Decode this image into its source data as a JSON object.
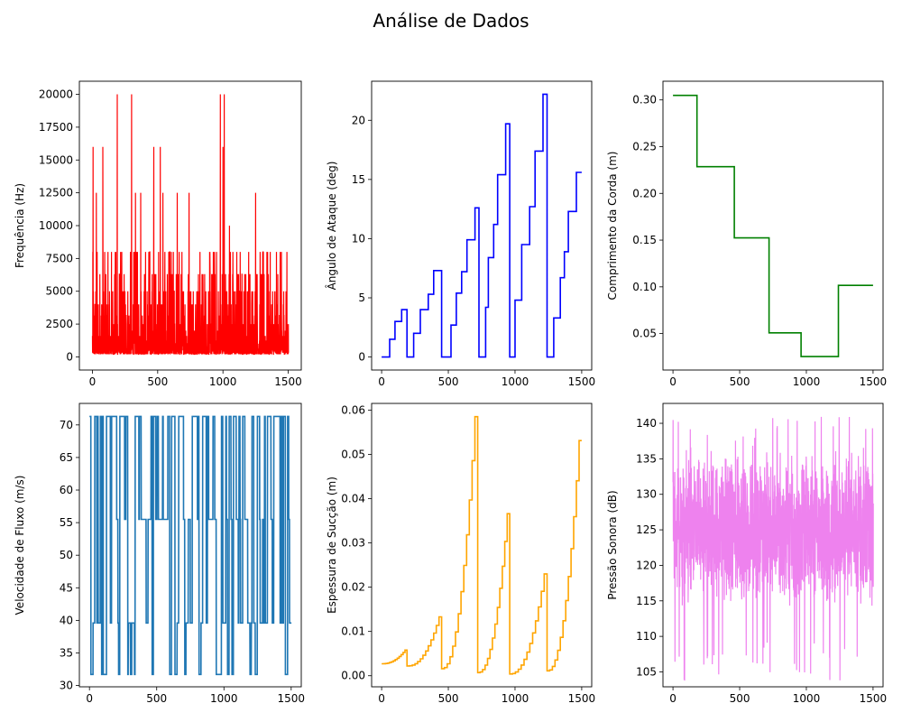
{
  "figure_title": "Análise de Dados",
  "chart_data": [
    {
      "type": "line",
      "panel": "top-left",
      "ylabel": "Frequência (Hz)",
      "color": "#ff0000",
      "xlim": [
        -100,
        1600
      ],
      "ylim": [
        -1000,
        21000
      ],
      "xticks": [
        0,
        500,
        1000,
        1500
      ],
      "yticks": [
        0,
        2500,
        5000,
        7500,
        10000,
        12500,
        15000,
        17500,
        20000
      ],
      "levels": [
        200,
        250,
        315,
        400,
        500,
        630,
        800,
        1000,
        1250,
        1600,
        2000,
        2500,
        3150,
        4000,
        5000,
        6300,
        8000,
        10000,
        12500,
        16000,
        20000
      ],
      "highlights": [
        [
          5,
          16000
        ],
        [
          30,
          12500
        ],
        [
          80,
          16000
        ],
        [
          190,
          20000
        ],
        [
          300,
          20000
        ],
        [
          330,
          12500
        ],
        [
          370,
          12500
        ],
        [
          470,
          16000
        ],
        [
          520,
          16000
        ],
        [
          540,
          12500
        ],
        [
          650,
          12500
        ],
        [
          740,
          12500
        ],
        [
          980,
          20000
        ],
        [
          1000,
          16000
        ],
        [
          1010,
          20000
        ],
        [
          1050,
          10000
        ],
        [
          1250,
          12500
        ]
      ]
    },
    {
      "type": "line",
      "panel": "top-center",
      "ylabel": "Ângulo de Ataque (deg)",
      "color": "#0000ff",
      "xlim": [
        -75,
        1575
      ],
      "ylim": [
        -1.1,
        23.3
      ],
      "xticks": [
        0,
        500,
        1000,
        1500
      ],
      "yticks": [
        0,
        5,
        10,
        15,
        20
      ],
      "steps": [
        [
          0,
          0
        ],
        [
          60,
          1.5
        ],
        [
          100,
          3.0
        ],
        [
          150,
          4.0
        ],
        [
          190,
          0
        ],
        [
          240,
          2.0
        ],
        [
          290,
          4.0
        ],
        [
          350,
          5.3
        ],
        [
          390,
          7.3
        ],
        [
          450,
          0
        ],
        [
          520,
          2.7
        ],
        [
          560,
          5.4
        ],
        [
          600,
          7.2
        ],
        [
          640,
          9.9
        ],
        [
          700,
          12.6
        ],
        [
          730,
          0
        ],
        [
          780,
          4.2
        ],
        [
          800,
          8.4
        ],
        [
          840,
          11.2
        ],
        [
          870,
          15.4
        ],
        [
          930,
          19.7
        ],
        [
          960,
          0
        ],
        [
          1000,
          4.8
        ],
        [
          1050,
          9.5
        ],
        [
          1110,
          12.7
        ],
        [
          1150,
          17.4
        ],
        [
          1210,
          22.2
        ],
        [
          1240,
          0
        ],
        [
          1290,
          3.3
        ],
        [
          1340,
          6.7
        ],
        [
          1370,
          8.9
        ],
        [
          1400,
          12.3
        ],
        [
          1460,
          15.6
        ],
        [
          1500,
          15.6
        ]
      ]
    },
    {
      "type": "line",
      "panel": "top-right",
      "ylabel": "Comprimento da Corda (m)",
      "color": "#008000",
      "xlim": [
        -75,
        1575
      ],
      "ylim": [
        0.011,
        0.32
      ],
      "xticks": [
        0,
        500,
        1000,
        1500
      ],
      "yticks": [
        0.05,
        0.1,
        0.15,
        0.2,
        0.25,
        0.3
      ],
      "steps": [
        [
          0,
          0.3048
        ],
        [
          180,
          0.2286
        ],
        [
          460,
          0.1524
        ],
        [
          720,
          0.0508
        ],
        [
          960,
          0.0254
        ],
        [
          1240,
          0.1016
        ],
        [
          1500,
          0.1016
        ]
      ]
    },
    {
      "type": "line",
      "panel": "bottom-left",
      "ylabel": "Velocidade de Fluxo (m/s)",
      "color": "#1f77b4",
      "xlim": [
        -75,
        1575
      ],
      "ylim": [
        29.8,
        73.3
      ],
      "xticks": [
        0,
        500,
        1000,
        1500
      ],
      "yticks": [
        30,
        35,
        40,
        45,
        50,
        55,
        60,
        65,
        70
      ],
      "levels": [
        31.7,
        39.6,
        55.5,
        71.3
      ]
    },
    {
      "type": "line",
      "panel": "bottom-center",
      "ylabel": "Espessura de Sucção (m)",
      "color": "#ffa500",
      "xlim": [
        -75,
        1575
      ],
      "ylim": [
        -0.0025,
        0.0615
      ],
      "xticks": [
        0,
        500,
        1000,
        1500
      ],
      "yticks": [
        0.0,
        0.01,
        0.02,
        0.03,
        0.04,
        0.05,
        0.06
      ],
      "segments": [
        [
          0,
          190,
          0.0027,
          0.0058
        ],
        [
          190,
          450,
          0.0022,
          0.0133
        ],
        [
          450,
          720,
          0.0016,
          0.0585
        ],
        [
          720,
          960,
          0.0007,
          0.0366
        ],
        [
          960,
          1240,
          0.0004,
          0.023
        ],
        [
          1240,
          1500,
          0.0011,
          0.0531
        ]
      ]
    },
    {
      "type": "line",
      "panel": "bottom-right",
      "ylabel": "Pressão Sonora (dB)",
      "color": "#ee82ee",
      "xlim": [
        -75,
        1575
      ],
      "ylim": [
        102.9,
        142.8
      ],
      "xticks": [
        0,
        500,
        1000,
        1500
      ],
      "yticks": [
        105,
        110,
        115,
        120,
        125,
        130,
        135,
        140
      ],
      "range": [
        103.4,
        141.0
      ],
      "mean": 124.8
    }
  ]
}
